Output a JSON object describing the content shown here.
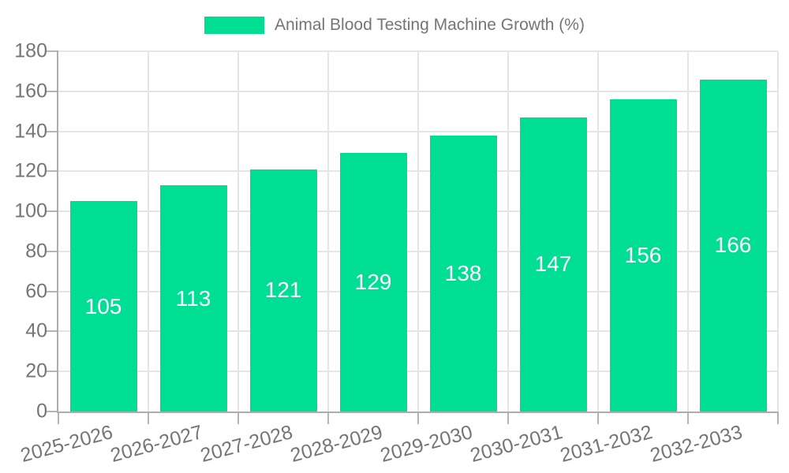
{
  "legend": {
    "label": "Animal Blood Testing Machine Growth (%)"
  },
  "chart_data": {
    "type": "bar",
    "title": "Animal Blood Testing Machine Growth (%)",
    "series_name": "Animal Blood Testing Machine Growth (%)",
    "categories": [
      "2025-2026",
      "2026-2027",
      "2027-2028",
      "2028-2029",
      "2029-2030",
      "2030-2031",
      "2031-2032",
      "2032-2033"
    ],
    "values": [
      105,
      113,
      121,
      129,
      138,
      147,
      156,
      166
    ],
    "xlabel": "",
    "ylabel": "",
    "ylim": [
      0,
      180
    ],
    "ytick_step": 20,
    "grid": true,
    "legend_position": "top-center",
    "x_label_rotation_deg": -15,
    "bar_color": "#00DE94",
    "value_label_color": "#FFFFFF",
    "axis_text_color": "#757575",
    "axis_line_color": "#ADADAD",
    "gridline_color": "#E5E5E5",
    "background_color": "#FFFFFF"
  }
}
